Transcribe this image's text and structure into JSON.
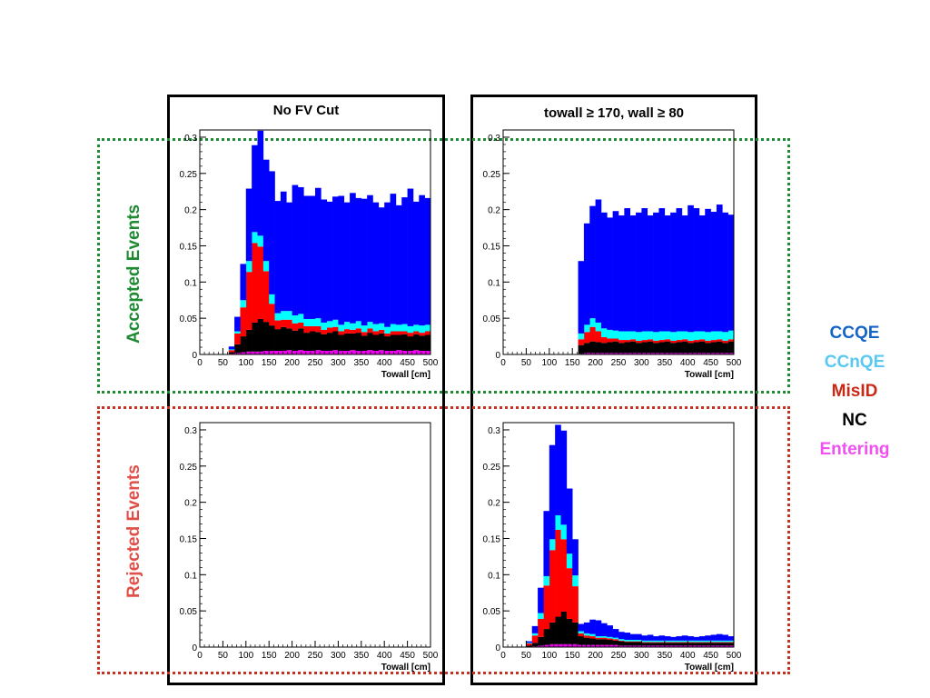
{
  "columns": [
    {
      "title": "No FV Cut"
    },
    {
      "title": "towall ≥ 170, wall ≥ 80"
    }
  ],
  "rows": [
    {
      "label": "Accepted Events",
      "color": "#1e8a32"
    },
    {
      "label": "Rejected Events",
      "color": "#e05048"
    }
  ],
  "legend": [
    {
      "label": "CCQE",
      "color": "#1464c8"
    },
    {
      "label": "CCnQE",
      "color": "#5ac8f0"
    },
    {
      "label": "MisID",
      "color": "#c82814"
    },
    {
      "label": "NC",
      "color": "#000000"
    },
    {
      "label": "Entering",
      "color": "#f050f0"
    }
  ],
  "chart_data": [
    {
      "type": "stacked-histogram",
      "panel": "accepted-no-fv-cut",
      "xlabel": "Towall [cm]",
      "xlim": [
        0,
        500
      ],
      "ylim": [
        0,
        0.31
      ],
      "yticks": [
        0,
        0.05,
        0.1,
        0.15,
        0.2,
        0.25,
        0.3
      ],
      "xticks": [
        0,
        50,
        100,
        150,
        200,
        250,
        300,
        350,
        400,
        450,
        500
      ],
      "bin_width": 12.5,
      "bins_start": 0,
      "series": [
        {
          "name": "Entering",
          "color": "#f000f0",
          "values": [
            0,
            0,
            0,
            0,
            0,
            0.001,
            0.002,
            0.003,
            0.004,
            0.004,
            0.004,
            0.005,
            0.005,
            0.005,
            0.005,
            0.006,
            0.005,
            0.006,
            0.005,
            0.005,
            0.006,
            0.005,
            0.005,
            0.006,
            0.005,
            0.005,
            0.006,
            0.005,
            0.005,
            0.006,
            0.005,
            0.006,
            0.005,
            0.005,
            0.006,
            0.005,
            0.005,
            0.006,
            0.005,
            0.005
          ]
        },
        {
          "name": "NC",
          "color": "#000000",
          "values": [
            0,
            0,
            0,
            0,
            0,
            0.002,
            0.012,
            0.022,
            0.03,
            0.04,
            0.045,
            0.04,
            0.035,
            0.03,
            0.033,
            0.03,
            0.028,
            0.03,
            0.025,
            0.027,
            0.025,
            0.023,
            0.025,
            0.026,
            0.022,
            0.024,
            0.023,
            0.025,
            0.021,
            0.024,
            0.022,
            0.023,
            0.02,
            0.022,
            0.021,
            0.023,
            0.02,
            0.022,
            0.021,
            0.022
          ]
        },
        {
          "name": "MisID",
          "color": "#ff0000",
          "values": [
            0,
            0,
            0,
            0,
            0,
            0.003,
            0.015,
            0.04,
            0.08,
            0.11,
            0.1,
            0.07,
            0.03,
            0.012,
            0.01,
            0.012,
            0.01,
            0.008,
            0.009,
            0.007,
            0.008,
            0.006,
            0.007,
            0.006,
            0.005,
            0.006,
            0.005,
            0.006,
            0.005,
            0.006,
            0.005,
            0.005,
            0.004,
            0.005,
            0.005,
            0.004,
            0.005,
            0.004,
            0.004,
            0.005
          ]
        },
        {
          "name": "CCnQE",
          "color": "#00ffff",
          "values": [
            0,
            0,
            0,
            0,
            0,
            0.001,
            0.003,
            0.01,
            0.015,
            0.015,
            0.015,
            0.014,
            0.013,
            0.01,
            0.012,
            0.012,
            0.011,
            0.012,
            0.01,
            0.01,
            0.011,
            0.01,
            0.009,
            0.01,
            0.009,
            0.01,
            0.009,
            0.01,
            0.009,
            0.009,
            0.01,
            0.009,
            0.009,
            0.01,
            0.009,
            0.01,
            0.009,
            0.009,
            0.01,
            0.009
          ]
        },
        {
          "name": "CCQE",
          "color": "#0000ff",
          "values": [
            0,
            0,
            0,
            0,
            0,
            0.004,
            0.02,
            0.05,
            0.1,
            0.12,
            0.145,
            0.14,
            0.17,
            0.155,
            0.165,
            0.15,
            0.18,
            0.175,
            0.17,
            0.17,
            0.18,
            0.17,
            0.165,
            0.17,
            0.178,
            0.165,
            0.18,
            0.17,
            0.175,
            0.175,
            0.168,
            0.16,
            0.172,
            0.18,
            0.165,
            0.175,
            0.19,
            0.17,
            0.18,
            0.175
          ]
        }
      ]
    },
    {
      "type": "stacked-histogram",
      "panel": "accepted-fv-cut",
      "xlabel": "Towall [cm]",
      "xlim": [
        0,
        500
      ],
      "ylim": [
        0,
        0.31
      ],
      "yticks": [
        0,
        0.05,
        0.1,
        0.15,
        0.2,
        0.25,
        0.3
      ],
      "xticks": [
        0,
        50,
        100,
        150,
        200,
        250,
        300,
        350,
        400,
        450,
        500
      ],
      "bin_width": 12.5,
      "bins_start": 0,
      "series": [
        {
          "name": "Entering",
          "color": "#f000f0",
          "values": [
            0,
            0,
            0,
            0,
            0,
            0,
            0,
            0,
            0,
            0,
            0,
            0,
            0,
            0.001,
            0.002,
            0.002,
            0.002,
            0.002,
            0.002,
            0.002,
            0.002,
            0.002,
            0.002,
            0.002,
            0.002,
            0.002,
            0.002,
            0.002,
            0.002,
            0.002,
            0.002,
            0.002,
            0.002,
            0.002,
            0.002,
            0.002,
            0.002,
            0.002,
            0.002,
            0.002
          ]
        },
        {
          "name": "NC",
          "color": "#000000",
          "values": [
            0,
            0,
            0,
            0,
            0,
            0,
            0,
            0,
            0,
            0,
            0,
            0,
            0,
            0.012,
            0.014,
            0.016,
            0.015,
            0.014,
            0.015,
            0.016,
            0.014,
            0.015,
            0.016,
            0.014,
            0.015,
            0.016,
            0.014,
            0.015,
            0.016,
            0.014,
            0.015,
            0.016,
            0.014,
            0.015,
            0.016,
            0.014,
            0.015,
            0.016,
            0.014,
            0.016
          ]
        },
        {
          "name": "MisID",
          "color": "#ff0000",
          "values": [
            0,
            0,
            0,
            0,
            0,
            0,
            0,
            0,
            0,
            0,
            0,
            0,
            0,
            0.008,
            0.015,
            0.02,
            0.015,
            0.008,
            0.005,
            0.004,
            0.004,
            0.003,
            0.003,
            0.003,
            0.003,
            0.003,
            0.003,
            0.003,
            0.003,
            0.003,
            0.003,
            0.003,
            0.003,
            0.003,
            0.003,
            0.003,
            0.003,
            0.003,
            0.003,
            0.003
          ]
        },
        {
          "name": "CCnQE",
          "color": "#00ffff",
          "values": [
            0,
            0,
            0,
            0,
            0,
            0,
            0,
            0,
            0,
            0,
            0,
            0,
            0,
            0.008,
            0.01,
            0.012,
            0.012,
            0.012,
            0.012,
            0.011,
            0.012,
            0.012,
            0.011,
            0.012,
            0.012,
            0.011,
            0.012,
            0.012,
            0.011,
            0.012,
            0.012,
            0.011,
            0.012,
            0.012,
            0.011,
            0.012,
            0.012,
            0.011,
            0.012,
            0.012
          ]
        },
        {
          "name": "CCQE",
          "color": "#0000ff",
          "values": [
            0,
            0,
            0,
            0,
            0,
            0,
            0,
            0,
            0,
            0,
            0,
            0,
            0,
            0.1,
            0.14,
            0.155,
            0.17,
            0.16,
            0.155,
            0.165,
            0.16,
            0.17,
            0.16,
            0.165,
            0.17,
            0.16,
            0.165,
            0.17,
            0.16,
            0.165,
            0.17,
            0.16,
            0.175,
            0.17,
            0.16,
            0.17,
            0.165,
            0.175,
            0.165,
            0.16
          ]
        }
      ]
    },
    {
      "type": "stacked-histogram",
      "panel": "rejected-no-fv-cut",
      "xlabel": "Towall [cm]",
      "xlim": [
        0,
        500
      ],
      "ylim": [
        0,
        0.31
      ],
      "yticks": [
        0,
        0.05,
        0.1,
        0.15,
        0.2,
        0.25,
        0.3
      ],
      "xticks": [
        0,
        50,
        100,
        150,
        200,
        250,
        300,
        350,
        400,
        450,
        500
      ],
      "bin_width": 12.5,
      "bins_start": 0,
      "series": []
    },
    {
      "type": "stacked-histogram",
      "panel": "rejected-fv-cut",
      "xlabel": "Towall [cm]",
      "xlim": [
        0,
        500
      ],
      "ylim": [
        0,
        0.31
      ],
      "yticks": [
        0,
        0.05,
        0.1,
        0.15,
        0.2,
        0.25,
        0.3
      ],
      "xticks": [
        0,
        50,
        100,
        150,
        200,
        250,
        300,
        350,
        400,
        450,
        500
      ],
      "bin_width": 12.5,
      "bins_start": 0,
      "series": [
        {
          "name": "Entering",
          "color": "#f000f0",
          "values": [
            0,
            0,
            0,
            0,
            0,
            0.001,
            0.002,
            0.003,
            0.004,
            0.004,
            0.004,
            0.004,
            0.004,
            0.003,
            0.003,
            0.003,
            0.003,
            0.003,
            0.003,
            0.003,
            0.002,
            0.002,
            0.002,
            0.002,
            0.002,
            0.002,
            0.002,
            0.002,
            0.002,
            0.002,
            0.002,
            0.002,
            0.002,
            0.002,
            0.002,
            0.002,
            0.002,
            0.002,
            0.002,
            0.002
          ]
        },
        {
          "name": "NC",
          "color": "#000000",
          "values": [
            0,
            0,
            0,
            0,
            0.002,
            0.005,
            0.012,
            0.022,
            0.03,
            0.038,
            0.045,
            0.035,
            0.03,
            0.012,
            0.01,
            0.009,
            0.008,
            0.008,
            0.007,
            0.006,
            0.006,
            0.005,
            0.005,
            0.005,
            0.004,
            0.004,
            0.004,
            0.004,
            0.004,
            0.004,
            0.004,
            0.004,
            0.004,
            0.004,
            0.004,
            0.004,
            0.004,
            0.004,
            0.004,
            0.004
          ]
        },
        {
          "name": "MisID",
          "color": "#ff0000",
          "values": [
            0,
            0,
            0,
            0,
            0.003,
            0.01,
            0.025,
            0.06,
            0.1,
            0.12,
            0.1,
            0.07,
            0.05,
            0.004,
            0.003,
            0.003,
            0.002,
            0.002,
            0.002,
            0.002,
            0.001,
            0.001,
            0.001,
            0.001,
            0.001,
            0.001,
            0.001,
            0.001,
            0.001,
            0.001,
            0.001,
            0.001,
            0.001,
            0.001,
            0.001,
            0.001,
            0.001,
            0.001,
            0.001,
            0.001
          ]
        },
        {
          "name": "CCnQE",
          "color": "#00ffff",
          "values": [
            0,
            0,
            0,
            0,
            0.001,
            0.003,
            0.008,
            0.013,
            0.015,
            0.02,
            0.02,
            0.02,
            0.015,
            0.003,
            0.003,
            0.003,
            0.002,
            0.002,
            0.002,
            0.002,
            0.002,
            0.002,
            0.002,
            0.002,
            0.002,
            0.002,
            0.002,
            0.002,
            0.002,
            0.002,
            0.002,
            0.002,
            0.002,
            0.002,
            0.002,
            0.002,
            0.002,
            0.002,
            0.002,
            0.002
          ]
        },
        {
          "name": "CCQE",
          "color": "#0000ff",
          "values": [
            0,
            0,
            0,
            0,
            0.002,
            0.01,
            0.035,
            0.09,
            0.13,
            0.125,
            0.13,
            0.09,
            0.05,
            0.01,
            0.015,
            0.02,
            0.022,
            0.018,
            0.016,
            0.012,
            0.01,
            0.01,
            0.008,
            0.008,
            0.007,
            0.008,
            0.006,
            0.007,
            0.006,
            0.005,
            0.006,
            0.007,
            0.006,
            0.005,
            0.006,
            0.007,
            0.008,
            0.009,
            0.008,
            0.006
          ]
        }
      ]
    }
  ]
}
